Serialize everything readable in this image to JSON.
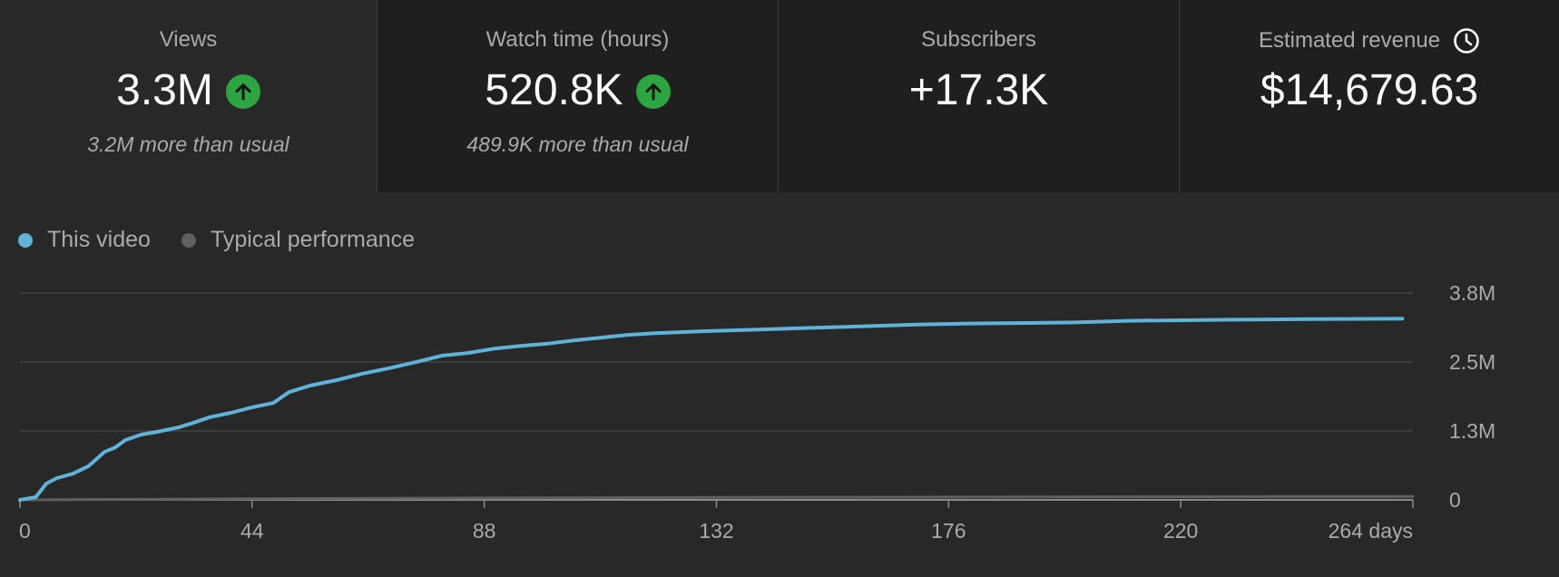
{
  "cards": [
    {
      "title": "Views",
      "value": "3.3M",
      "note": "3.2M more than usual",
      "trend": "up"
    },
    {
      "title": "Watch time (hours)",
      "value": "520.8K",
      "note": "489.9K more than usual",
      "trend": "up"
    },
    {
      "title": "Subscribers",
      "value": "+17.3K",
      "note": "",
      "trend": "none"
    },
    {
      "title": "Estimated revenue",
      "value": "$14,679.63",
      "note": "",
      "trend": "none",
      "icon": "clock-icon"
    }
  ],
  "legend": {
    "this_video": "This video",
    "typical": "Typical performance"
  },
  "colors": {
    "this_video": "#5fb3d9",
    "typical": "#606060",
    "up_badge": "#2ba640"
  },
  "chart_data": {
    "type": "line",
    "xlabel": "",
    "ylabel": "",
    "x_ticks": [
      "0",
      "44",
      "88",
      "132",
      "176",
      "220",
      "264 days"
    ],
    "x_tick_values": [
      0,
      44,
      88,
      132,
      176,
      220,
      264
    ],
    "y_ticks": [
      "0",
      "1.3M",
      "2.5M",
      "3.8M"
    ],
    "y_tick_values": [
      0,
      1266667,
      2533333,
      3800000
    ],
    "xlim": [
      0,
      264
    ],
    "ylim": [
      0,
      3800000
    ],
    "grid": true,
    "legend_position": "top-left",
    "series": [
      {
        "name": "This video",
        "points": [
          [
            0,
            0
          ],
          [
            3,
            50000
          ],
          [
            5,
            300000
          ],
          [
            7,
            400000
          ],
          [
            10,
            480000
          ],
          [
            13,
            620000
          ],
          [
            16,
            880000
          ],
          [
            18,
            960000
          ],
          [
            20,
            1100000
          ],
          [
            23,
            1200000
          ],
          [
            26,
            1250000
          ],
          [
            30,
            1330000
          ],
          [
            33,
            1420000
          ],
          [
            36,
            1520000
          ],
          [
            40,
            1600000
          ],
          [
            44,
            1700000
          ],
          [
            48,
            1780000
          ],
          [
            51,
            1980000
          ],
          [
            55,
            2100000
          ],
          [
            60,
            2200000
          ],
          [
            65,
            2320000
          ],
          [
            70,
            2420000
          ],
          [
            75,
            2530000
          ],
          [
            80,
            2650000
          ],
          [
            85,
            2700000
          ],
          [
            90,
            2780000
          ],
          [
            95,
            2830000
          ],
          [
            100,
            2870000
          ],
          [
            105,
            2930000
          ],
          [
            110,
            2980000
          ],
          [
            115,
            3030000
          ],
          [
            120,
            3060000
          ],
          [
            130,
            3100000
          ],
          [
            140,
            3130000
          ],
          [
            150,
            3160000
          ],
          [
            160,
            3190000
          ],
          [
            170,
            3220000
          ],
          [
            180,
            3240000
          ],
          [
            200,
            3260000
          ],
          [
            210,
            3290000
          ],
          [
            230,
            3310000
          ],
          [
            245,
            3320000
          ],
          [
            262,
            3330000
          ]
        ]
      },
      {
        "name": "Typical performance",
        "points": [
          [
            0,
            0
          ],
          [
            44,
            20000
          ],
          [
            88,
            35000
          ],
          [
            132,
            45000
          ],
          [
            176,
            52000
          ],
          [
            220,
            58000
          ],
          [
            264,
            62000
          ]
        ]
      }
    ]
  }
}
